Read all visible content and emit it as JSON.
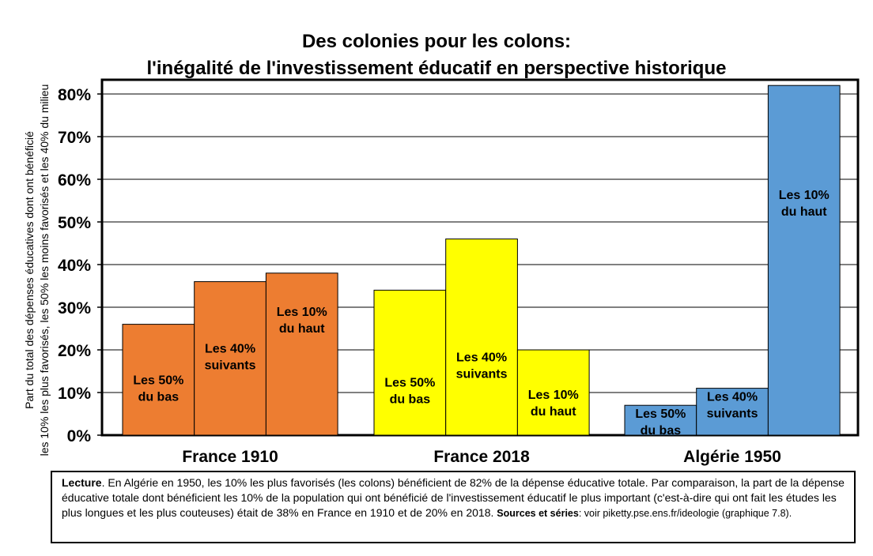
{
  "title_line1": "Des colonies pour les colons:",
  "title_line2": "l'inégalité de l'investissement éducatif en perspective historique",
  "ylabel_line1": "Part du total des dépenses éducatives dont ont bénéficié",
  "ylabel_line2": "les 10% les plus favorisés, les 50% les moins favorisés et les 40% du milieu",
  "note": {
    "lead": "Lecture",
    "text": ". En Algérie en 1950, les 10% les plus favorisés (les colons) bénéficient de 82% de la dépense éducative totale. Par comparaison, la part de la dépense éducative totale dont bénéficient les 10% de la population qui ont bénéficié de l'investissement éducatif le plus important (c'est-à-dire qui ont fait les études les plus longues et les plus couteuses) était de 38% en France en 1910 et de 20% en 2018.",
    "sources_lead": "Sources et séries",
    "sources_text": ": voir piketty.pse.ens.fr/ideologie (graphique 7.8)."
  },
  "colors": {
    "france1910": "#ED7D31",
    "france2018": "#FFFF00",
    "algerie1950": "#5B9BD5"
  },
  "chart_data": {
    "type": "bar",
    "title": "Des colonies pour les colons: l'inégalité de l'investissement éducatif en perspective historique",
    "ylabel": "Part du total des dépenses éducatives dont ont bénéficié les 10% les plus favorisés, les 50% les moins favorisés et les 40% du milieu",
    "ylim": [
      0,
      0.8
    ],
    "yticks": [
      0,
      0.1,
      0.2,
      0.3,
      0.4,
      0.5,
      0.6,
      0.7,
      0.8
    ],
    "ytick_labels": [
      "0%",
      "10%",
      "20%",
      "30%",
      "40%",
      "50%",
      "60%",
      "70%",
      "80%"
    ],
    "grid": true,
    "groups": [
      {
        "name": "France 1910",
        "color": "#ED7D31",
        "bars": [
          {
            "value": 0.26,
            "label": [
              "Les 50%",
              "du bas"
            ]
          },
          {
            "value": 0.36,
            "label": [
              "Les 40%",
              "suivants"
            ]
          },
          {
            "value": 0.38,
            "label": [
              "Les 10%",
              "du haut"
            ]
          }
        ]
      },
      {
        "name": "France 2018",
        "color": "#FFFF00",
        "bars": [
          {
            "value": 0.34,
            "label": [
              "Les 50%",
              "du bas"
            ]
          },
          {
            "value": 0.46,
            "label": [
              "Les 40%",
              "suivants"
            ]
          },
          {
            "value": 0.2,
            "label": [
              "Les 10%",
              "du haut"
            ]
          }
        ]
      },
      {
        "name": "Algérie 1950",
        "color": "#5B9BD5",
        "bars": [
          {
            "value": 0.07,
            "label": [
              "Les 50%",
              "du bas"
            ]
          },
          {
            "value": 0.11,
            "label": [
              "Les 40%",
              "suivants"
            ]
          },
          {
            "value": 0.82,
            "label": [
              "Les 10%",
              "du haut"
            ]
          }
        ]
      }
    ]
  }
}
